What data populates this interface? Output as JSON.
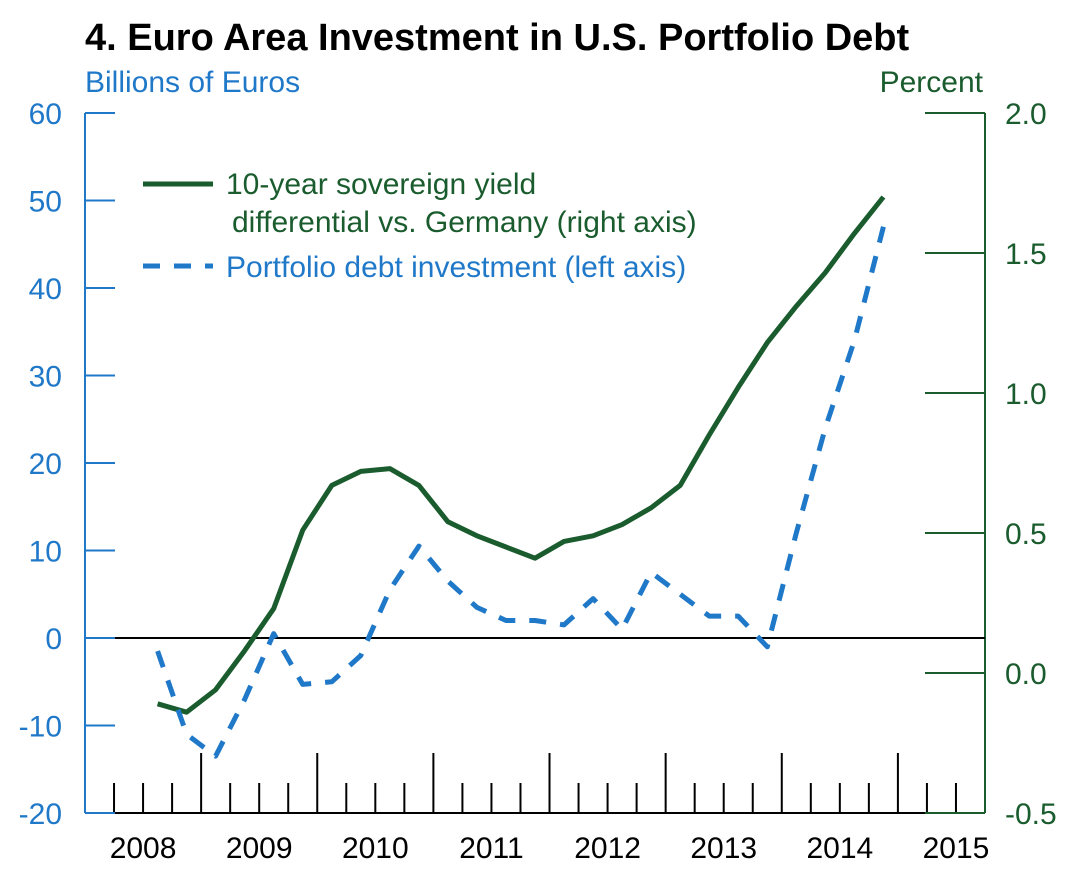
{
  "chart_data": {
    "type": "line",
    "title": "4. Euro Area Investment in U.S. Portfolio Debt",
    "left_axis": {
      "label": "Billions of Euros",
      "ylim": [
        -20,
        60
      ],
      "ticks": [
        "60",
        "50",
        "40",
        "30",
        "20",
        "10",
        "0",
        "-10",
        "-20"
      ],
      "tick_values": [
        60,
        50,
        40,
        30,
        20,
        10,
        0,
        -10,
        -20
      ],
      "color": "#1f78c8"
    },
    "right_axis": {
      "label": "Percent",
      "ylim": [
        -0.5,
        2.0
      ],
      "ticks": [
        "2.0",
        "1.5",
        "1.0",
        "0.5",
        "0.0",
        "-0.5"
      ],
      "tick_values": [
        2.0,
        1.5,
        1.0,
        0.5,
        0.0,
        -0.5
      ],
      "color": "#1a5c2e"
    },
    "x_axis": {
      "labels": [
        "2008",
        "2009",
        "2010",
        "2011",
        "2012",
        "2013",
        "2014",
        "2015"
      ],
      "xlim": [
        2008.0,
        2015.75
      ]
    },
    "zero_line": true,
    "grid": false,
    "legend_position": "top-left",
    "series": [
      {
        "name": "10-year sovereign yield",
        "name_line2": "differential vs. Germany (right axis)",
        "axis": "right",
        "style": "solid",
        "color": "#1a5c2e",
        "x": [
          2008.625,
          2008.875,
          2009.125,
          2009.375,
          2009.625,
          2009.875,
          2010.125,
          2010.375,
          2010.625,
          2010.875,
          2011.125,
          2011.375,
          2011.625,
          2011.875,
          2012.125,
          2012.375,
          2012.625,
          2012.875,
          2013.125,
          2013.375,
          2013.625,
          2013.875,
          2014.125,
          2014.375,
          2014.625,
          2014.875
        ],
        "values": [
          -0.11,
          -0.14,
          -0.06,
          0.08,
          0.23,
          0.51,
          0.67,
          0.72,
          0.73,
          0.67,
          0.54,
          0.49,
          0.45,
          0.41,
          0.47,
          0.49,
          0.53,
          0.59,
          0.67,
          0.85,
          1.02,
          1.18,
          1.31,
          1.43,
          1.57,
          1.7
        ]
      },
      {
        "name": "Portfolio debt investment (left axis)",
        "axis": "left",
        "style": "dashed",
        "color": "#1f78c8",
        "x": [
          2008.625,
          2008.875,
          2009.125,
          2009.375,
          2009.625,
          2009.875,
          2010.125,
          2010.375,
          2010.625,
          2010.875,
          2011.125,
          2011.375,
          2011.625,
          2011.875,
          2012.125,
          2012.375,
          2012.625,
          2012.875,
          2013.125,
          2013.375,
          2013.625,
          2013.875,
          2014.125,
          2014.375,
          2014.625,
          2014.875
        ],
        "values": [
          -1.5,
          -11.0,
          -13.5,
          -7.0,
          0.5,
          -5.3,
          -5.0,
          -2.0,
          5.5,
          10.5,
          6.5,
          3.5,
          2.0,
          2.0,
          1.5,
          4.5,
          1.0,
          7.5,
          5.0,
          2.5,
          2.5,
          -1.0,
          12.0,
          24.0,
          34.0,
          47.0
        ]
      }
    ]
  }
}
